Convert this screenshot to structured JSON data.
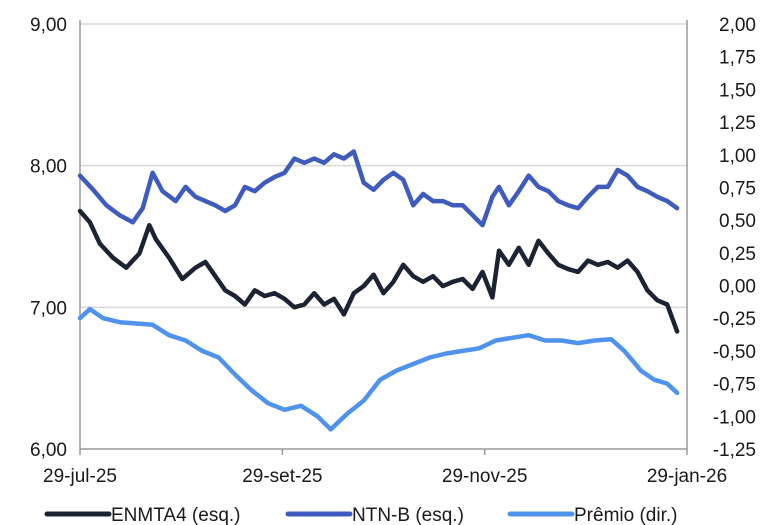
{
  "chart_data": {
    "type": "line",
    "x_axis": {
      "tick_labels": [
        "29-jul-25",
        "29-set-25",
        "29-nov-25",
        "29-jan-26"
      ],
      "range": [
        "2025-07-29",
        "2026-01-29"
      ]
    },
    "y_left": {
      "ylim": [
        6.0,
        9.0
      ],
      "tick_labels": [
        "6,00",
        "7,00",
        "8,00",
        "9,00"
      ],
      "ticks": [
        6,
        7,
        8,
        9
      ]
    },
    "y_right": {
      "ylim": [
        -1.25,
        2.0
      ],
      "tick_labels": [
        "-1,25",
        "-1,00",
        "-0,75",
        "-0,50",
        "-0,25",
        "0,00",
        "0,25",
        "0,50",
        "0,75",
        "1,00",
        "1,25",
        "1,50",
        "1,75",
        "2,00"
      ],
      "ticks": [
        -1.25,
        -1.0,
        -0.75,
        -0.5,
        -0.25,
        0.0,
        0.25,
        0.5,
        0.75,
        1.0,
        1.25,
        1.5,
        1.75,
        2.0
      ]
    },
    "grid": "horizontal",
    "legend_position": "bottom",
    "series": [
      {
        "name": "ENMTA4 (esq.)",
        "axis": "left",
        "color": "#1c2333",
        "points": [
          [
            "2025-07-29",
            7.68
          ],
          [
            "2025-08-01",
            7.6
          ],
          [
            "2025-08-04",
            7.45
          ],
          [
            "2025-08-08",
            7.35
          ],
          [
            "2025-08-12",
            7.28
          ],
          [
            "2025-08-16",
            7.38
          ],
          [
            "2025-08-19",
            7.58
          ],
          [
            "2025-08-21",
            7.48
          ],
          [
            "2025-08-25",
            7.35
          ],
          [
            "2025-08-29",
            7.2
          ],
          [
            "2025-09-02",
            7.28
          ],
          [
            "2025-09-05",
            7.32
          ],
          [
            "2025-09-08",
            7.22
          ],
          [
            "2025-09-11",
            7.12
          ],
          [
            "2025-09-14",
            7.08
          ],
          [
            "2025-09-17",
            7.02
          ],
          [
            "2025-09-20",
            7.12
          ],
          [
            "2025-09-23",
            7.08
          ],
          [
            "2025-09-26",
            7.1
          ],
          [
            "2025-09-29",
            7.06
          ],
          [
            "2025-10-02",
            7.0
          ],
          [
            "2025-10-05",
            7.02
          ],
          [
            "2025-10-08",
            7.1
          ],
          [
            "2025-10-11",
            7.02
          ],
          [
            "2025-10-14",
            7.06
          ],
          [
            "2025-10-17",
            6.95
          ],
          [
            "2025-10-20",
            7.1
          ],
          [
            "2025-10-23",
            7.15
          ],
          [
            "2025-10-26",
            7.23
          ],
          [
            "2025-10-29",
            7.1
          ],
          [
            "2025-11-01",
            7.18
          ],
          [
            "2025-11-04",
            7.3
          ],
          [
            "2025-11-07",
            7.22
          ],
          [
            "2025-11-10",
            7.18
          ],
          [
            "2025-11-13",
            7.22
          ],
          [
            "2025-11-16",
            7.15
          ],
          [
            "2025-11-19",
            7.18
          ],
          [
            "2025-11-22",
            7.2
          ],
          [
            "2025-11-25",
            7.13
          ],
          [
            "2025-11-28",
            7.25
          ],
          [
            "2025-12-01",
            7.07
          ],
          [
            "2025-12-03",
            7.4
          ],
          [
            "2025-12-06",
            7.3
          ],
          [
            "2025-12-09",
            7.42
          ],
          [
            "2025-12-12",
            7.3
          ],
          [
            "2025-12-15",
            7.47
          ],
          [
            "2025-12-18",
            7.38
          ],
          [
            "2025-12-21",
            7.3
          ],
          [
            "2025-12-24",
            7.27
          ],
          [
            "2025-12-27",
            7.25
          ],
          [
            "2025-12-30",
            7.33
          ],
          [
            "2026-01-02",
            7.3
          ],
          [
            "2026-01-05",
            7.32
          ],
          [
            "2026-01-08",
            7.28
          ],
          [
            "2026-01-11",
            7.33
          ],
          [
            "2026-01-14",
            7.25
          ],
          [
            "2026-01-17",
            7.12
          ],
          [
            "2026-01-20",
            7.05
          ],
          [
            "2026-01-23",
            7.02
          ],
          [
            "2026-01-26",
            6.83
          ]
        ]
      },
      {
        "name": "NTN-B (esq.)",
        "axis": "left",
        "color": "#3f5bbf",
        "points": [
          [
            "2025-07-29",
            7.93
          ],
          [
            "2025-08-02",
            7.83
          ],
          [
            "2025-08-06",
            7.72
          ],
          [
            "2025-08-10",
            7.65
          ],
          [
            "2025-08-14",
            7.6
          ],
          [
            "2025-08-17",
            7.7
          ],
          [
            "2025-08-20",
            7.95
          ],
          [
            "2025-08-23",
            7.82
          ],
          [
            "2025-08-27",
            7.75
          ],
          [
            "2025-08-30",
            7.85
          ],
          [
            "2025-09-02",
            7.78
          ],
          [
            "2025-09-05",
            7.75
          ],
          [
            "2025-09-08",
            7.72
          ],
          [
            "2025-09-11",
            7.68
          ],
          [
            "2025-09-14",
            7.72
          ],
          [
            "2025-09-17",
            7.85
          ],
          [
            "2025-09-20",
            7.82
          ],
          [
            "2025-09-23",
            7.88
          ],
          [
            "2025-09-26",
            7.92
          ],
          [
            "2025-09-29",
            7.95
          ],
          [
            "2025-10-02",
            8.05
          ],
          [
            "2025-10-05",
            8.02
          ],
          [
            "2025-10-08",
            8.05
          ],
          [
            "2025-10-11",
            8.02
          ],
          [
            "2025-10-14",
            8.08
          ],
          [
            "2025-10-17",
            8.05
          ],
          [
            "2025-10-20",
            8.1
          ],
          [
            "2025-10-23",
            7.88
          ],
          [
            "2025-10-26",
            7.83
          ],
          [
            "2025-10-29",
            7.9
          ],
          [
            "2025-11-01",
            7.95
          ],
          [
            "2025-11-04",
            7.9
          ],
          [
            "2025-11-07",
            7.72
          ],
          [
            "2025-11-10",
            7.8
          ],
          [
            "2025-11-13",
            7.75
          ],
          [
            "2025-11-16",
            7.75
          ],
          [
            "2025-11-19",
            7.72
          ],
          [
            "2025-11-22",
            7.72
          ],
          [
            "2025-11-25",
            7.65
          ],
          [
            "2025-11-28",
            7.58
          ],
          [
            "2025-12-01",
            7.78
          ],
          [
            "2025-12-03",
            7.85
          ],
          [
            "2025-12-06",
            7.72
          ],
          [
            "2025-12-09",
            7.82
          ],
          [
            "2025-12-12",
            7.93
          ],
          [
            "2025-12-15",
            7.85
          ],
          [
            "2025-12-18",
            7.82
          ],
          [
            "2025-12-21",
            7.75
          ],
          [
            "2025-12-24",
            7.72
          ],
          [
            "2025-12-27",
            7.7
          ],
          [
            "2025-12-30",
            7.78
          ],
          [
            "2026-01-02",
            7.85
          ],
          [
            "2026-01-05",
            7.85
          ],
          [
            "2026-01-08",
            7.97
          ],
          [
            "2026-01-11",
            7.93
          ],
          [
            "2026-01-14",
            7.85
          ],
          [
            "2026-01-17",
            7.82
          ],
          [
            "2026-01-20",
            7.78
          ],
          [
            "2026-01-23",
            7.75
          ],
          [
            "2026-01-26",
            7.7
          ]
        ]
      },
      {
        "name": "Prêmio (dir.)",
        "axis": "right",
        "color": "#4f93ee",
        "points": [
          [
            "2025-07-29",
            -0.25
          ],
          [
            "2025-08-01",
            -0.18
          ],
          [
            "2025-08-05",
            -0.25
          ],
          [
            "2025-08-10",
            -0.28
          ],
          [
            "2025-08-15",
            -0.29
          ],
          [
            "2025-08-20",
            -0.3
          ],
          [
            "2025-08-25",
            -0.38
          ],
          [
            "2025-08-30",
            -0.42
          ],
          [
            "2025-09-04",
            -0.5
          ],
          [
            "2025-09-09",
            -0.55
          ],
          [
            "2025-09-14",
            -0.68
          ],
          [
            "2025-09-19",
            -0.8
          ],
          [
            "2025-09-24",
            -0.9
          ],
          [
            "2025-09-29",
            -0.95
          ],
          [
            "2025-10-04",
            -0.92
          ],
          [
            "2025-10-09",
            -1.0
          ],
          [
            "2025-10-13",
            -1.1
          ],
          [
            "2025-10-18",
            -0.98
          ],
          [
            "2025-10-23",
            -0.88
          ],
          [
            "2025-10-28",
            -0.72
          ],
          [
            "2025-11-02",
            -0.65
          ],
          [
            "2025-11-07",
            -0.6
          ],
          [
            "2025-11-12",
            -0.55
          ],
          [
            "2025-11-17",
            -0.52
          ],
          [
            "2025-11-22",
            -0.5
          ],
          [
            "2025-11-27",
            -0.48
          ],
          [
            "2025-12-02",
            -0.42
          ],
          [
            "2025-12-07",
            -0.4
          ],
          [
            "2025-12-12",
            -0.38
          ],
          [
            "2025-12-17",
            -0.42
          ],
          [
            "2025-12-22",
            -0.42
          ],
          [
            "2025-12-27",
            -0.44
          ],
          [
            "2026-01-01",
            -0.42
          ],
          [
            "2026-01-06",
            -0.41
          ],
          [
            "2026-01-10",
            -0.5
          ],
          [
            "2026-01-15",
            -0.65
          ],
          [
            "2026-01-19",
            -0.72
          ],
          [
            "2026-01-23",
            -0.75
          ],
          [
            "2026-01-26",
            -0.82
          ]
        ]
      }
    ]
  }
}
